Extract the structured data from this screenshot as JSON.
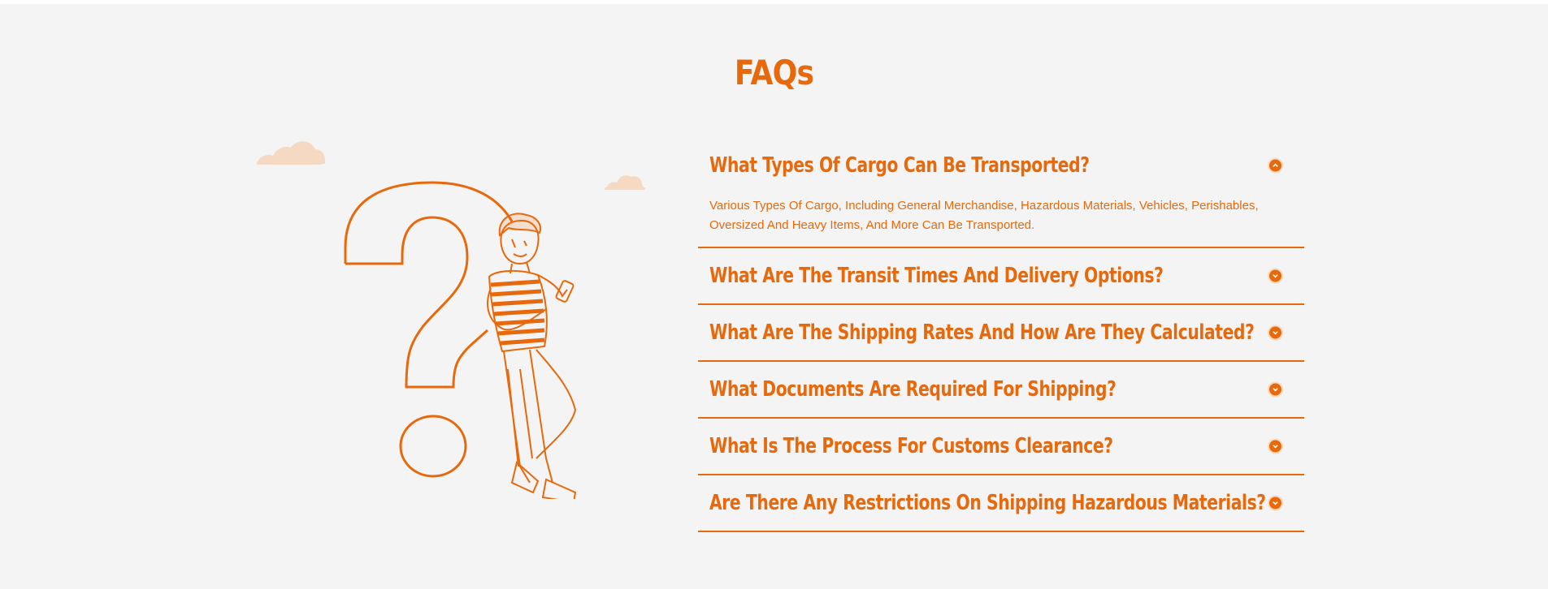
{
  "faq": {
    "title": "FAQs",
    "items": [
      {
        "question": "What Types Of Cargo Can Be Transported?",
        "answer": "Various Types Of Cargo, Including General Merchandise, Hazardous Materials, Vehicles, Perishables, Oversized And Heavy Items, And More Can Be Transported.",
        "expanded": true,
        "icon": "chevron-up-icon"
      },
      {
        "question": "What Are The Transit Times And Delivery Options?",
        "expanded": false,
        "icon": "chevron-down-icon"
      },
      {
        "question": "What Are The Shipping Rates And How Are They Calculated?",
        "expanded": false,
        "icon": "chevron-down-icon"
      },
      {
        "question": "What Documents Are Required For Shipping?",
        "expanded": false,
        "icon": "chevron-down-icon"
      },
      {
        "question": "What Is The Process For Customs Clearance?",
        "expanded": false,
        "icon": "chevron-down-icon"
      },
      {
        "question": "Are There Any Restrictions On Shipping Hazardous Materials?",
        "expanded": false,
        "icon": "chevron-down-icon"
      }
    ]
  },
  "colors": {
    "accent": "#e8690b",
    "background": "#f4f4f4",
    "cloud": "#f6d9c3"
  },
  "illustration": {
    "icons": [
      "cloud-icon",
      "question-mark-icon",
      "person-leaning-icon"
    ]
  }
}
